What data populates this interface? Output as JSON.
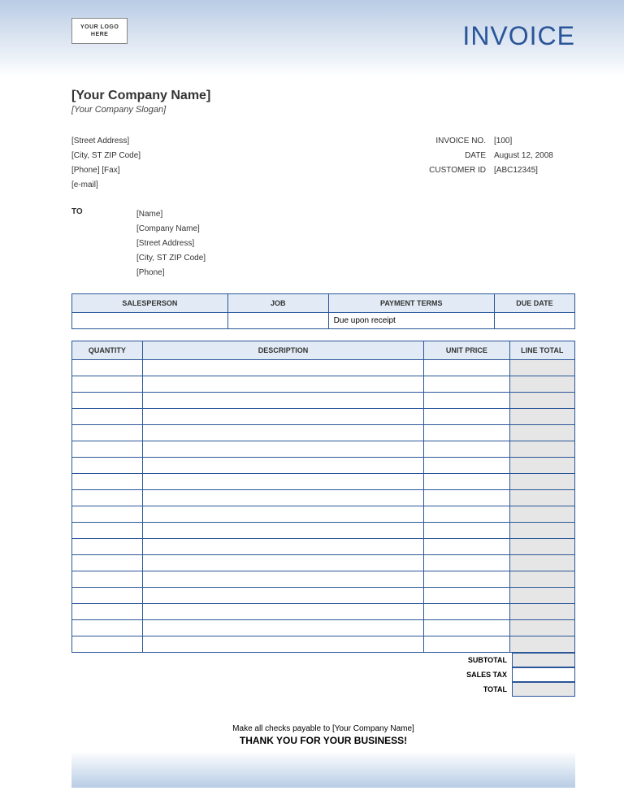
{
  "colors": {
    "accent": "#2a5699",
    "header_bg": "#e2ebf5",
    "shaded_bg": "#e6e6e6",
    "gradient_top_start": "#b8cce4",
    "gradient_top_end": "#ffffff"
  },
  "header": {
    "logo_line1": "YOUR LOGO",
    "logo_line2": "HERE",
    "title": "INVOICE"
  },
  "company": {
    "name": "[Your Company Name]",
    "slogan": "[Your Company Slogan]",
    "street": "[Street Address]",
    "city_zip": "[City, ST  ZIP Code]",
    "phone_fax": "[Phone] [Fax]",
    "email": "[e-mail]"
  },
  "meta": {
    "labels": {
      "invoice_no": "INVOICE NO.",
      "date": "DATE",
      "customer_id": "CUSTOMER ID"
    },
    "invoice_no": "[100]",
    "date": "August 12, 2008",
    "customer_id": "[ABC12345]"
  },
  "to": {
    "label": "TO",
    "name": "[Name]",
    "company": "[Company Name]",
    "street": "[Street Address]",
    "city_zip": "[City, ST  ZIP Code]",
    "phone": "[Phone]"
  },
  "terms_table": {
    "headers": {
      "salesperson": "SALESPERSON",
      "job": "JOB",
      "payment_terms": "PAYMENT TERMS",
      "due_date": "DUE DATE"
    },
    "col_widths": [
      "31%",
      "20%",
      "33%",
      "16%"
    ],
    "row": {
      "salesperson": "",
      "job": "",
      "payment_terms": "Due upon receipt",
      "due_date": ""
    }
  },
  "items_table": {
    "headers": {
      "quantity": "QUANTITY",
      "description": "DESCRIPTION",
      "unit_price": "UNIT PRICE",
      "line_total": "LINE TOTAL"
    },
    "col_widths": [
      "14%",
      "56%",
      "17%",
      "13%"
    ],
    "row_count": 18
  },
  "totals": {
    "subtotal_label": "SUBTOTAL",
    "sales_tax_label": "SALES TAX",
    "total_label": "TOTAL",
    "subtotal": "",
    "sales_tax": "",
    "total": ""
  },
  "footer": {
    "payable": "Make all checks payable to [Your Company Name]",
    "thank_you": "THANK YOU FOR YOUR BUSINESS!"
  }
}
